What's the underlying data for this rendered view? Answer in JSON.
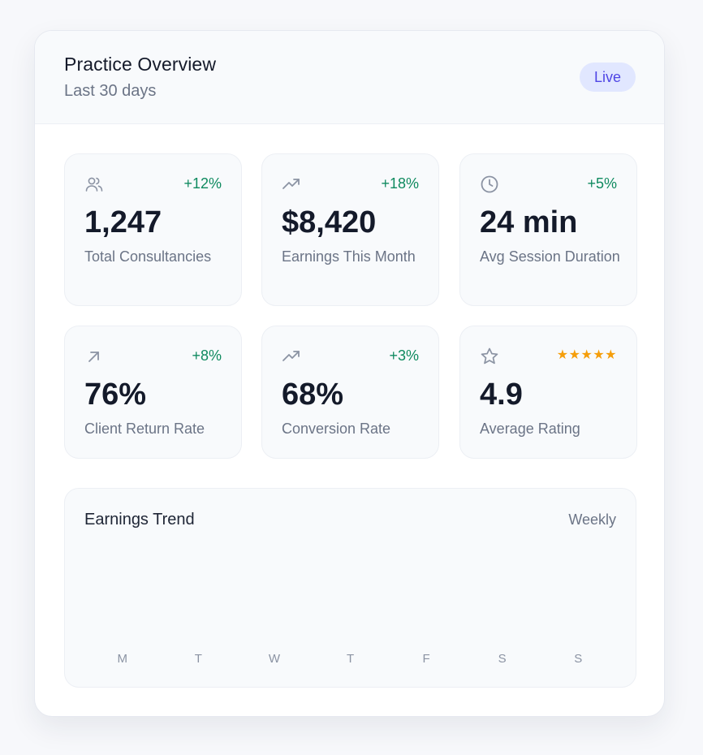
{
  "header": {
    "title": "Practice Overview",
    "subtitle": "Last 30 days",
    "badge": "Live"
  },
  "stats": [
    {
      "icon": "users-icon",
      "change": "+12%",
      "value": "1,247",
      "label": "Total Consultancies"
    },
    {
      "icon": "trending-up-icon",
      "change": "+18%",
      "value": "$8,420",
      "label": "Earnings This Month"
    },
    {
      "icon": "clock-icon",
      "change": "+5%",
      "value": "24 min",
      "label": "Avg Session Duration"
    },
    {
      "icon": "arrow-up-right-icon",
      "change": "+8%",
      "value": "76%",
      "label": "Client Return Rate"
    },
    {
      "icon": "trending-up-icon",
      "change": "+3%",
      "value": "68%",
      "label": "Conversion Rate"
    },
    {
      "icon": "star-icon",
      "stars": "★★★★★",
      "value": "4.9",
      "label": "Average Rating"
    }
  ],
  "trend": {
    "title": "Earnings Trend",
    "period": "Weekly",
    "days": [
      "M",
      "T",
      "W",
      "T",
      "F",
      "S",
      "S"
    ]
  },
  "colors": {
    "positive": "#0f8a5f",
    "accent": "#4f46e5",
    "star": "#f59e0b",
    "icon": "#8b93a3"
  }
}
